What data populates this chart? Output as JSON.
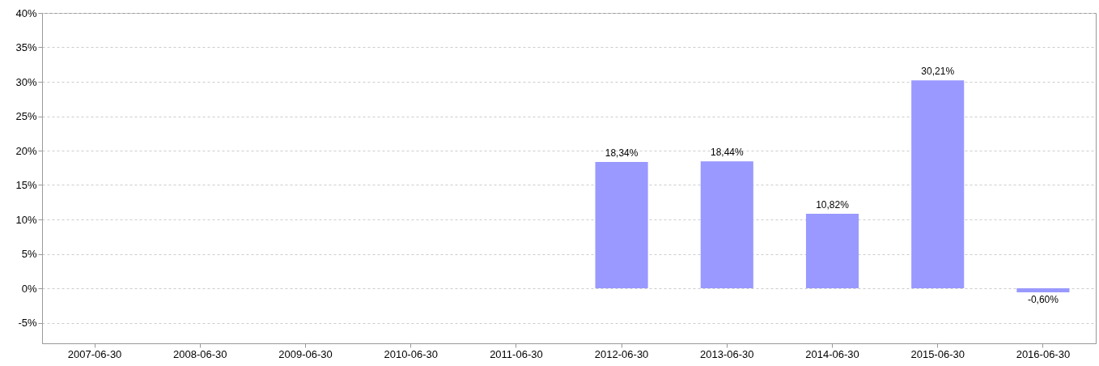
{
  "chart_data": {
    "type": "bar",
    "categories": [
      "2007-06-30",
      "2008-06-30",
      "2009-06-30",
      "2010-06-30",
      "2011-06-30",
      "2012-06-30",
      "2013-06-30",
      "2014-06-30",
      "2015-06-30",
      "2016-06-30"
    ],
    "values": [
      null,
      null,
      null,
      null,
      null,
      18.34,
      18.44,
      10.82,
      30.21,
      -0.6
    ],
    "value_labels": [
      null,
      null,
      null,
      null,
      null,
      "18,34%",
      "18,44%",
      "10,82%",
      "30,21%",
      "-0,60%"
    ],
    "color": "#9999ff",
    "ylim": [
      -8,
      40
    ],
    "yticks": [
      {
        "value": -5,
        "label": "-5%"
      },
      {
        "value": 0,
        "label": "0%"
      },
      {
        "value": 5,
        "label": "5%"
      },
      {
        "value": 10,
        "label": "10%"
      },
      {
        "value": 15,
        "label": "15%"
      },
      {
        "value": 20,
        "label": "20%"
      },
      {
        "value": 25,
        "label": "25%"
      },
      {
        "value": 30,
        "label": "30%"
      },
      {
        "value": 35,
        "label": "35%"
      },
      {
        "value": 40,
        "label": "40%"
      }
    ],
    "grid": "y"
  }
}
